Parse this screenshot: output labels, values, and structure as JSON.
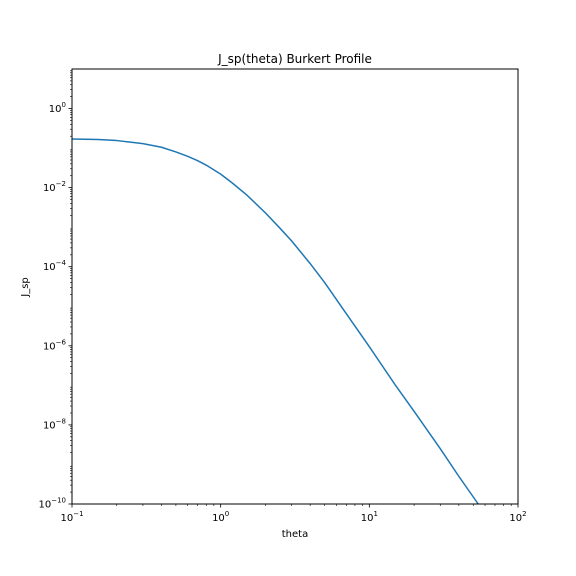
{
  "chart_data": {
    "type": "line",
    "title": "J_sp(theta) Burkert Profile",
    "xlabel": "theta",
    "ylabel": "J_sp",
    "xscale": "log",
    "yscale": "log",
    "xlim": [
      0.1,
      100
    ],
    "ylim": [
      1e-10,
      10
    ],
    "grid": false,
    "x_ticks": [
      {
        "value": 0.1,
        "base": "10",
        "exp": "−1"
      },
      {
        "value": 1,
        "base": "10",
        "exp": "0"
      },
      {
        "value": 10,
        "base": "10",
        "exp": "1"
      },
      {
        "value": 100,
        "base": "10",
        "exp": "2"
      }
    ],
    "y_ticks": [
      {
        "value": 1e-10,
        "base": "10",
        "exp": "−10"
      },
      {
        "value": 1e-08,
        "base": "10",
        "exp": "−8"
      },
      {
        "value": 1e-06,
        "base": "10",
        "exp": "−6"
      },
      {
        "value": 0.0001,
        "base": "10",
        "exp": "−4"
      },
      {
        "value": 0.01,
        "base": "10",
        "exp": "−2"
      },
      {
        "value": 1,
        "base": "10",
        "exp": "0"
      }
    ],
    "series": [
      {
        "color": "#1f77b4",
        "x": [
          0.1,
          0.15,
          0.2,
          0.3,
          0.4,
          0.5,
          0.6,
          0.7,
          0.8,
          1.0,
          1.2,
          1.5,
          2.0,
          2.5,
          3.0,
          4.0,
          5.0,
          7.0,
          10.0,
          15.0,
          20.0,
          30.0,
          40.0,
          54.0
        ],
        "y": [
          0.17,
          0.165,
          0.155,
          0.13,
          0.105,
          0.08,
          0.062,
          0.048,
          0.037,
          0.022,
          0.013,
          0.0065,
          0.0023,
          0.00095,
          0.00045,
          0.00012,
          4e-05,
          6.5e-06,
          9.5e-07,
          1e-07,
          2.2e-08,
          2.5e-09,
          5e-10,
          1e-10
        ]
      }
    ]
  }
}
